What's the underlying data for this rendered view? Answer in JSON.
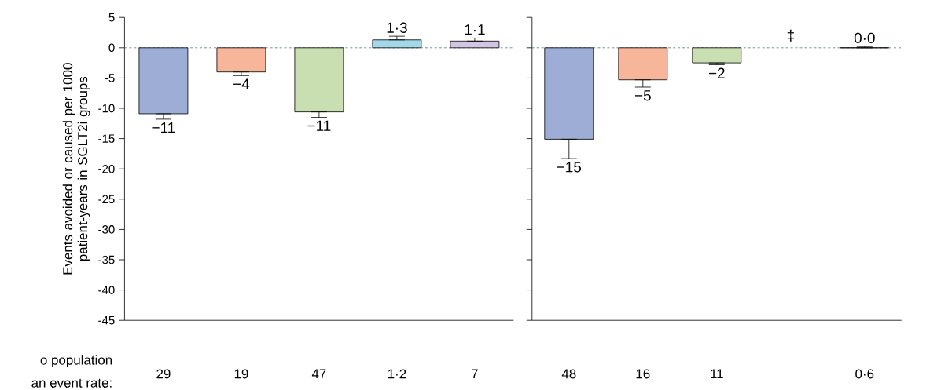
{
  "chart_data": [
    {
      "type": "bar",
      "ylabel": "Events avoided or caused per 1000 patient-years in SGLT2i groups",
      "categories": [
        "29",
        "19",
        "47",
        "1·2",
        "7"
      ],
      "values": [
        -10.9,
        -4.0,
        -10.6,
        1.3,
        1.1
      ],
      "colors": [
        "#9dadd6",
        "#f7b599",
        "#c9dfb1",
        "#a3d8e8",
        "#d3c5e4"
      ],
      "errors": [
        [
          -11.8,
          -10.9
        ],
        [
          -4.6,
          -4.0
        ],
        [
          -11.5,
          -10.6
        ],
        [
          1.3,
          1.9
        ],
        [
          1.1,
          1.6
        ]
      ],
      "value_labels": [
        "−11",
        "−4",
        "−11",
        "1·3",
        "1·1"
      ],
      "ylim": [
        -45,
        5
      ],
      "yticks": [
        5,
        0,
        -5,
        -10,
        -15,
        -20,
        -25,
        -30,
        -35,
        -40,
        -45
      ],
      "ref_lines": [
        {
          "axis": "y",
          "value": 0,
          "line_style": "dashed",
          "color": "#4a7a80"
        }
      ],
      "annotations": [
        "o population",
        "an event rate:"
      ]
    },
    {
      "type": "bar",
      "categories": [
        "48",
        "16",
        "11",
        null,
        "0·6"
      ],
      "values": [
        -15.1,
        -5.3,
        -2.5,
        null,
        0.0
      ],
      "colors": [
        "#9dadd6",
        "#f7b599",
        "#c9dfb1",
        "#a3d8e8",
        "#d3c5e4"
      ],
      "errors": [
        [
          -18.3,
          -15.1
        ],
        [
          -6.5,
          -5.3
        ],
        [
          -2.8,
          -2.5
        ],
        null,
        [
          0.0,
          0.2
        ]
      ],
      "value_labels": [
        "−15",
        "−5",
        "−2",
        "‡",
        "0·0"
      ],
      "ylim": [
        -45,
        5
      ],
      "yticks": [
        5,
        0,
        -5,
        -10,
        -15,
        -20,
        -25,
        -30,
        -35,
        -40,
        -45
      ],
      "tick_labels": "x",
      "ref_lines": [
        {
          "axis": "y",
          "value": 0,
          "line_style": "dashed",
          "color": "#4a7a80"
        }
      ]
    }
  ]
}
